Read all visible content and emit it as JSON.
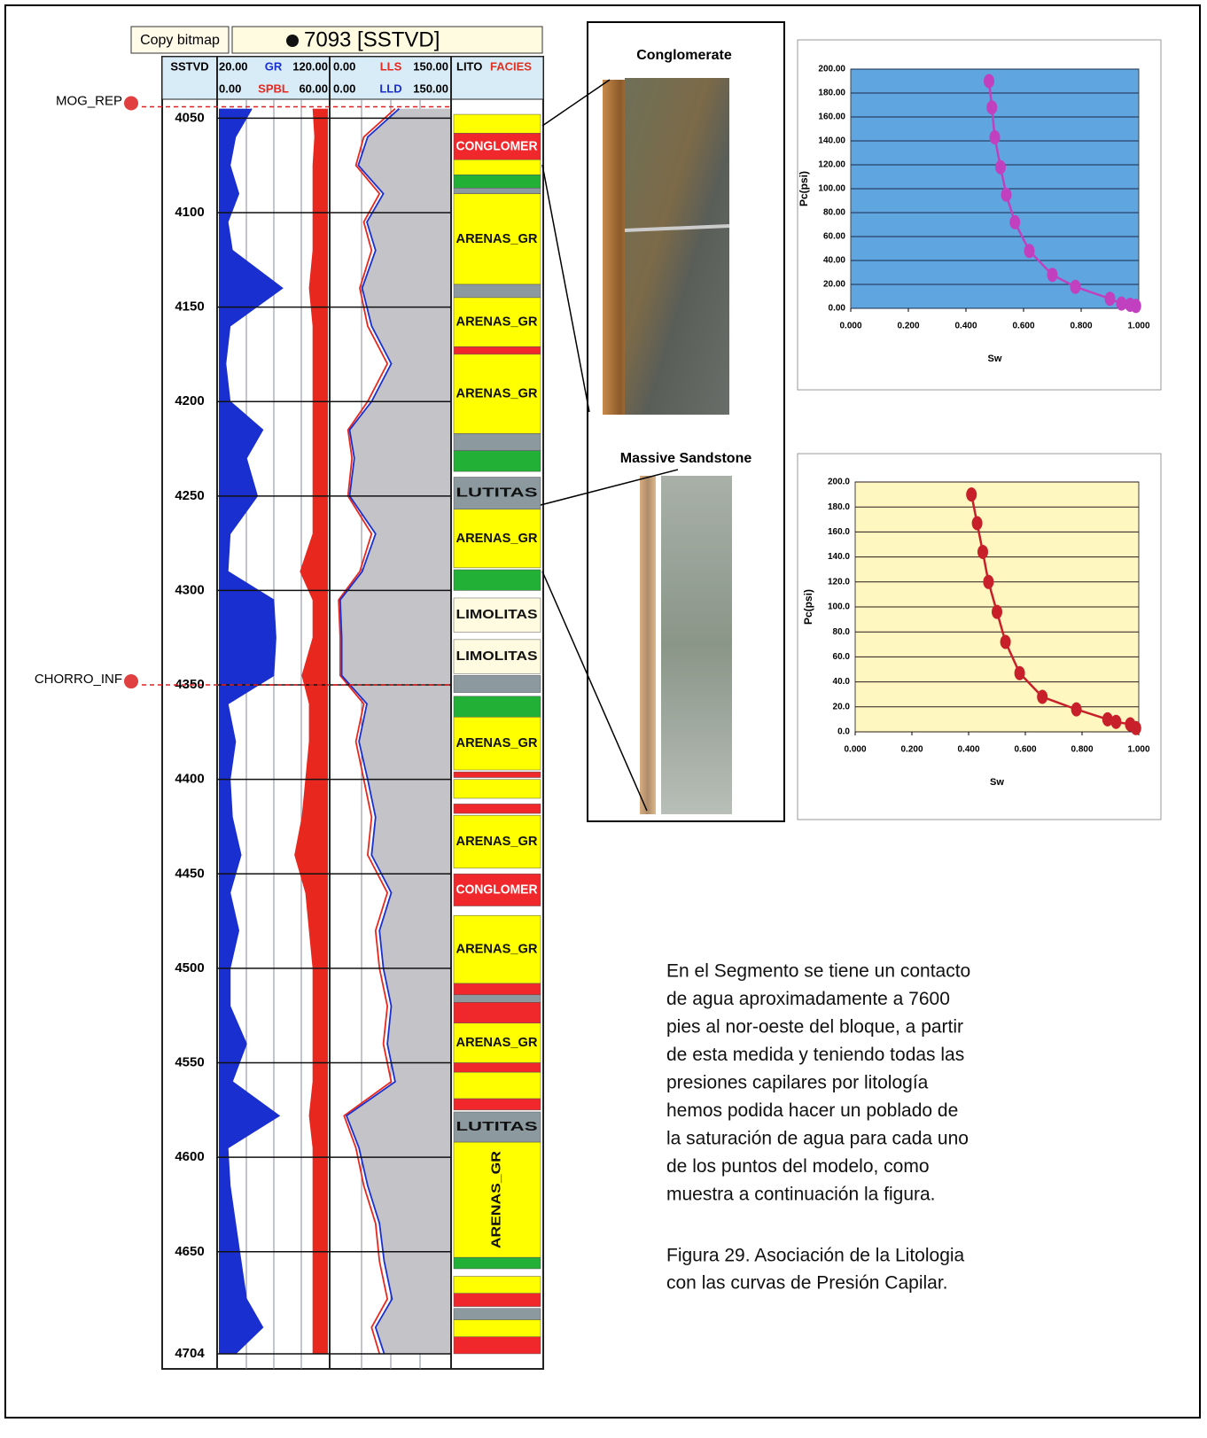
{
  "well_log": {
    "button": "Copy bitmap",
    "title": "7093 [SSTVD]",
    "depth_label": "SSTVD",
    "depth_lim": [
      4040,
      4712
    ],
    "depth_ticks": [
      4050,
      4100,
      4150,
      4200,
      4250,
      4300,
      4350,
      4400,
      4450,
      4500,
      4550,
      4600,
      4650,
      4704
    ],
    "markers": [
      {
        "name": "MOG_REP",
        "depth": 4044
      },
      {
        "name": "CHORRO_INF",
        "depth": 4350
      }
    ],
    "depths": [
      4045,
      4060,
      4075,
      4090,
      4105,
      4120,
      4140,
      4160,
      4180,
      4200,
      4215,
      4230,
      4250,
      4270,
      4290,
      4305,
      4325,
      4345,
      4360,
      4380,
      4400,
      4420,
      4440,
      4460,
      4480,
      4500,
      4520,
      4540,
      4560,
      4578,
      4595,
      4615,
      4635,
      4655,
      4675,
      4690,
      4704
    ],
    "curves": [
      {
        "name": "GR",
        "color": "#1a2fd0",
        "scale": [
          {
            "value": 20,
            "label": "20.00"
          },
          {
            "value": 120,
            "label": "120.00"
          }
        ],
        "values": [
          50,
          35,
          30,
          38,
          28,
          32,
          78,
          30,
          26,
          30,
          60,
          45,
          55,
          30,
          28,
          70,
          72,
          70,
          28,
          35,
          30,
          32,
          40,
          30,
          38,
          30,
          30,
          45,
          32,
          75,
          28,
          30,
          35,
          40,
          45,
          60,
          35
        ]
      },
      {
        "name": "SPBL",
        "color": "#e8281e",
        "scale": [
          {
            "value": 0,
            "label": "0.00"
          },
          {
            "value": 60,
            "label": "60.00"
          }
        ],
        "values": [
          52,
          53,
          52,
          52,
          52,
          52,
          50,
          52,
          52,
          52,
          52,
          52,
          52,
          52,
          45,
          52,
          52,
          46,
          50,
          50,
          48,
          46,
          42,
          48,
          50,
          52,
          52,
          52,
          52,
          50,
          52,
          52,
          52,
          52,
          52,
          52,
          52
        ]
      },
      {
        "name": "LLS",
        "color": "#e8281e",
        "scale": [
          {
            "value": 0,
            "label": "0.00"
          },
          {
            "value": 150,
            "label": "150.00"
          }
        ],
        "values": [
          80,
          40,
          30,
          60,
          40,
          50,
          35,
          45,
          70,
          45,
          20,
          25,
          20,
          50,
          35,
          8,
          10,
          10,
          40,
          30,
          40,
          50,
          45,
          70,
          55,
          60,
          70,
          65,
          75,
          15,
          30,
          40,
          55,
          60,
          70,
          50,
          60
        ]
      },
      {
        "name": "LLD",
        "color": "#1a2fd0",
        "scale": [
          {
            "value": 0,
            "label": "0.00"
          },
          {
            "value": 150,
            "label": "150.00"
          }
        ],
        "values": [
          85,
          45,
          33,
          65,
          44,
          55,
          38,
          50,
          75,
          50,
          22,
          28,
          22,
          55,
          38,
          10,
          12,
          12,
          44,
          34,
          45,
          55,
          50,
          75,
          60,
          65,
          75,
          70,
          80,
          18,
          34,
          45,
          60,
          66,
          76,
          55,
          66
        ]
      }
    ],
    "facies_header": [
      "LITO",
      "FACIES"
    ],
    "facies": [
      {
        "top": 4048,
        "base": 4058,
        "color": "#ffff00"
      },
      {
        "top": 4058,
        "base": 4072,
        "color": "#f0282c",
        "label": "CONGLOMER"
      },
      {
        "top": 4072,
        "base": 4080,
        "color": "#ffff00"
      },
      {
        "top": 4080,
        "base": 4087,
        "color": "#22b036"
      },
      {
        "top": 4087,
        "base": 4090,
        "color": "#8c9aa0"
      },
      {
        "top": 4090,
        "base": 4138,
        "color": "#ffff00",
        "label": "ARENAS_GR"
      },
      {
        "top": 4138,
        "base": 4145,
        "color": "#8c9aa0"
      },
      {
        "top": 4145,
        "base": 4171,
        "color": "#ffff00",
        "label": "ARENAS_GR"
      },
      {
        "top": 4171,
        "base": 4175,
        "color": "#f0282c"
      },
      {
        "top": 4175,
        "base": 4217,
        "color": "#ffff00",
        "label": "ARENAS_GR"
      },
      {
        "top": 4217,
        "base": 4226,
        "color": "#8c9aa0"
      },
      {
        "top": 4226,
        "base": 4237,
        "color": "#22b036"
      },
      {
        "top": 4240,
        "base": 4257,
        "color": "#8c9aa0",
        "label": "LUTITAS"
      },
      {
        "top": 4257,
        "base": 4288,
        "color": "#ffff00",
        "label": "ARENAS_GR"
      },
      {
        "top": 4289,
        "base": 4300,
        "color": "#22b036"
      },
      {
        "top": 4304,
        "base": 4322,
        "color": "#fffbe0",
        "label": "LIMOLITAS"
      },
      {
        "top": 4326,
        "base": 4344,
        "color": "#fffbe0",
        "label": "LIMOLITAS"
      },
      {
        "top": 4345,
        "base": 4354,
        "color": "#8c9aa0"
      },
      {
        "top": 4356,
        "base": 4367,
        "color": "#22b036"
      },
      {
        "top": 4367,
        "base": 4395,
        "color": "#ffff00",
        "label": "ARENAS_GR"
      },
      {
        "top": 4396,
        "base": 4399,
        "color": "#f0282c"
      },
      {
        "top": 4400,
        "base": 4410,
        "color": "#ffff00"
      },
      {
        "top": 4413,
        "base": 4418,
        "color": "#f0282c"
      },
      {
        "top": 4419,
        "base": 4447,
        "color": "#ffff00",
        "label": "ARENAS_GR"
      },
      {
        "top": 4450,
        "base": 4467,
        "color": "#f0282c",
        "label": "CONGLOMER"
      },
      {
        "top": 4472,
        "base": 4508,
        "color": "#ffff00",
        "label": "ARENAS_GR"
      },
      {
        "top": 4508,
        "base": 4514,
        "color": "#f0282c"
      },
      {
        "top": 4514,
        "base": 4518,
        "color": "#8c9aa0"
      },
      {
        "top": 4518,
        "base": 4529,
        "color": "#f0282c"
      },
      {
        "top": 4529,
        "base": 4550,
        "color": "#ffff00",
        "label": "ARENAS_GR"
      },
      {
        "top": 4550,
        "base": 4555,
        "color": "#f0282c"
      },
      {
        "top": 4555,
        "base": 4569,
        "color": "#ffff00"
      },
      {
        "top": 4569,
        "base": 4575,
        "color": "#f0282c"
      },
      {
        "top": 4576,
        "base": 4592,
        "color": "#8c9aa0",
        "label": "LUTITAS"
      },
      {
        "top": 4592,
        "base": 4653,
        "color": "#ffff00",
        "label": "ARENAS_GR",
        "vertical": true
      },
      {
        "top": 4653,
        "base": 4659,
        "color": "#22b036"
      },
      {
        "top": 4663,
        "base": 4672,
        "color": "#ffff00"
      },
      {
        "top": 4672,
        "base": 4679,
        "color": "#f0282c"
      },
      {
        "top": 4680,
        "base": 4686,
        "color": "#8c9aa0"
      },
      {
        "top": 4686,
        "base": 4695,
        "color": "#ffff00"
      },
      {
        "top": 4695,
        "base": 4704,
        "color": "#f0282c"
      }
    ]
  },
  "photos": [
    {
      "label": "Conglomerate"
    },
    {
      "label": "Massive Sandstone"
    }
  ],
  "chart_data": [
    {
      "type": "line",
      "xlabel": "Sw",
      "ylabel": "Pc(psi)",
      "plot_background": "#5fa6e0",
      "grid_color": "#1b2a4a",
      "x": [
        0.48,
        0.49,
        0.5,
        0.52,
        0.54,
        0.57,
        0.62,
        0.7,
        0.78,
        0.9,
        0.94,
        0.97,
        0.99
      ],
      "series": [
        {
          "color": "#c040c0",
          "values": [
            190,
            168,
            143,
            118,
            95,
            72,
            48,
            28,
            18,
            8,
            4,
            3,
            2
          ]
        }
      ],
      "xlim": [
        0,
        1
      ],
      "ylim": [
        0,
        200
      ],
      "xticks": [
        {
          "value": 0,
          "label": "0.000"
        },
        {
          "value": 0.2,
          "label": "0.200"
        },
        {
          "value": 0.4,
          "label": "0.400"
        },
        {
          "value": 0.6,
          "label": "0.600"
        },
        {
          "value": 0.8,
          "label": "0.800"
        },
        {
          "value": 1,
          "label": "1.000"
        }
      ],
      "yticks": [
        {
          "value": 0,
          "label": "0.00"
        },
        {
          "value": 20,
          "label": "20.00"
        },
        {
          "value": 40,
          "label": "40.00"
        },
        {
          "value": 60,
          "label": "60.00"
        },
        {
          "value": 80,
          "label": "80.00"
        },
        {
          "value": 100,
          "label": "100.00"
        },
        {
          "value": 120,
          "label": "120.00"
        },
        {
          "value": 140,
          "label": "140.00"
        },
        {
          "value": 160,
          "label": "160.00"
        },
        {
          "value": 180,
          "label": "180.00"
        },
        {
          "value": 200,
          "label": "200.00"
        }
      ],
      "grid": true
    },
    {
      "type": "line",
      "xlabel": "Sw",
      "ylabel": "Pc(psi)",
      "plot_background": "#fff6c0",
      "grid_color": "#2a1a1a",
      "x": [
        0.41,
        0.43,
        0.45,
        0.47,
        0.5,
        0.53,
        0.58,
        0.66,
        0.78,
        0.89,
        0.92,
        0.97,
        0.99
      ],
      "series": [
        {
          "color": "#c8202a",
          "values": [
            190,
            167,
            144,
            120,
            96,
            72,
            47,
            28,
            18,
            10,
            8,
            6,
            3
          ]
        }
      ],
      "xlim": [
        0,
        1
      ],
      "ylim": [
        0,
        200
      ],
      "xticks": [
        {
          "value": 0,
          "label": "0.000"
        },
        {
          "value": 0.2,
          "label": "0.200"
        },
        {
          "value": 0.4,
          "label": "0.400"
        },
        {
          "value": 0.6,
          "label": "0.600"
        },
        {
          "value": 0.8,
          "label": "0.800"
        },
        {
          "value": 1,
          "label": "1.000"
        }
      ],
      "yticks": [
        {
          "value": 0,
          "label": "0.0"
        },
        {
          "value": 20,
          "label": "20.0"
        },
        {
          "value": 40,
          "label": "40.0"
        },
        {
          "value": 60,
          "label": "60.0"
        },
        {
          "value": 80,
          "label": "80.0"
        },
        {
          "value": 100,
          "label": "100.0"
        },
        {
          "value": 120,
          "label": "120.0"
        },
        {
          "value": 140,
          "label": "140.0"
        },
        {
          "value": 160,
          "label": "160.0"
        },
        {
          "value": 180,
          "label": "180.0"
        },
        {
          "value": 200,
          "label": "200.0"
        }
      ],
      "grid": true
    }
  ],
  "paragraph": [
    "En el Segmento se tiene un contacto",
    "de agua aproximadamente a 7600",
    "pies al nor-oeste del bloque, a partir",
    "de esta medida y teniendo todas las",
    "presiones capilares por litología",
    "hemos podida hacer un poblado de",
    "la saturación de agua para cada uno",
    "de los puntos del modelo, como",
    "muestra a continuación la figura."
  ],
  "caption": [
    "Figura 29. Asociación de la Litologia",
    "con las curvas de Presión Capilar."
  ]
}
